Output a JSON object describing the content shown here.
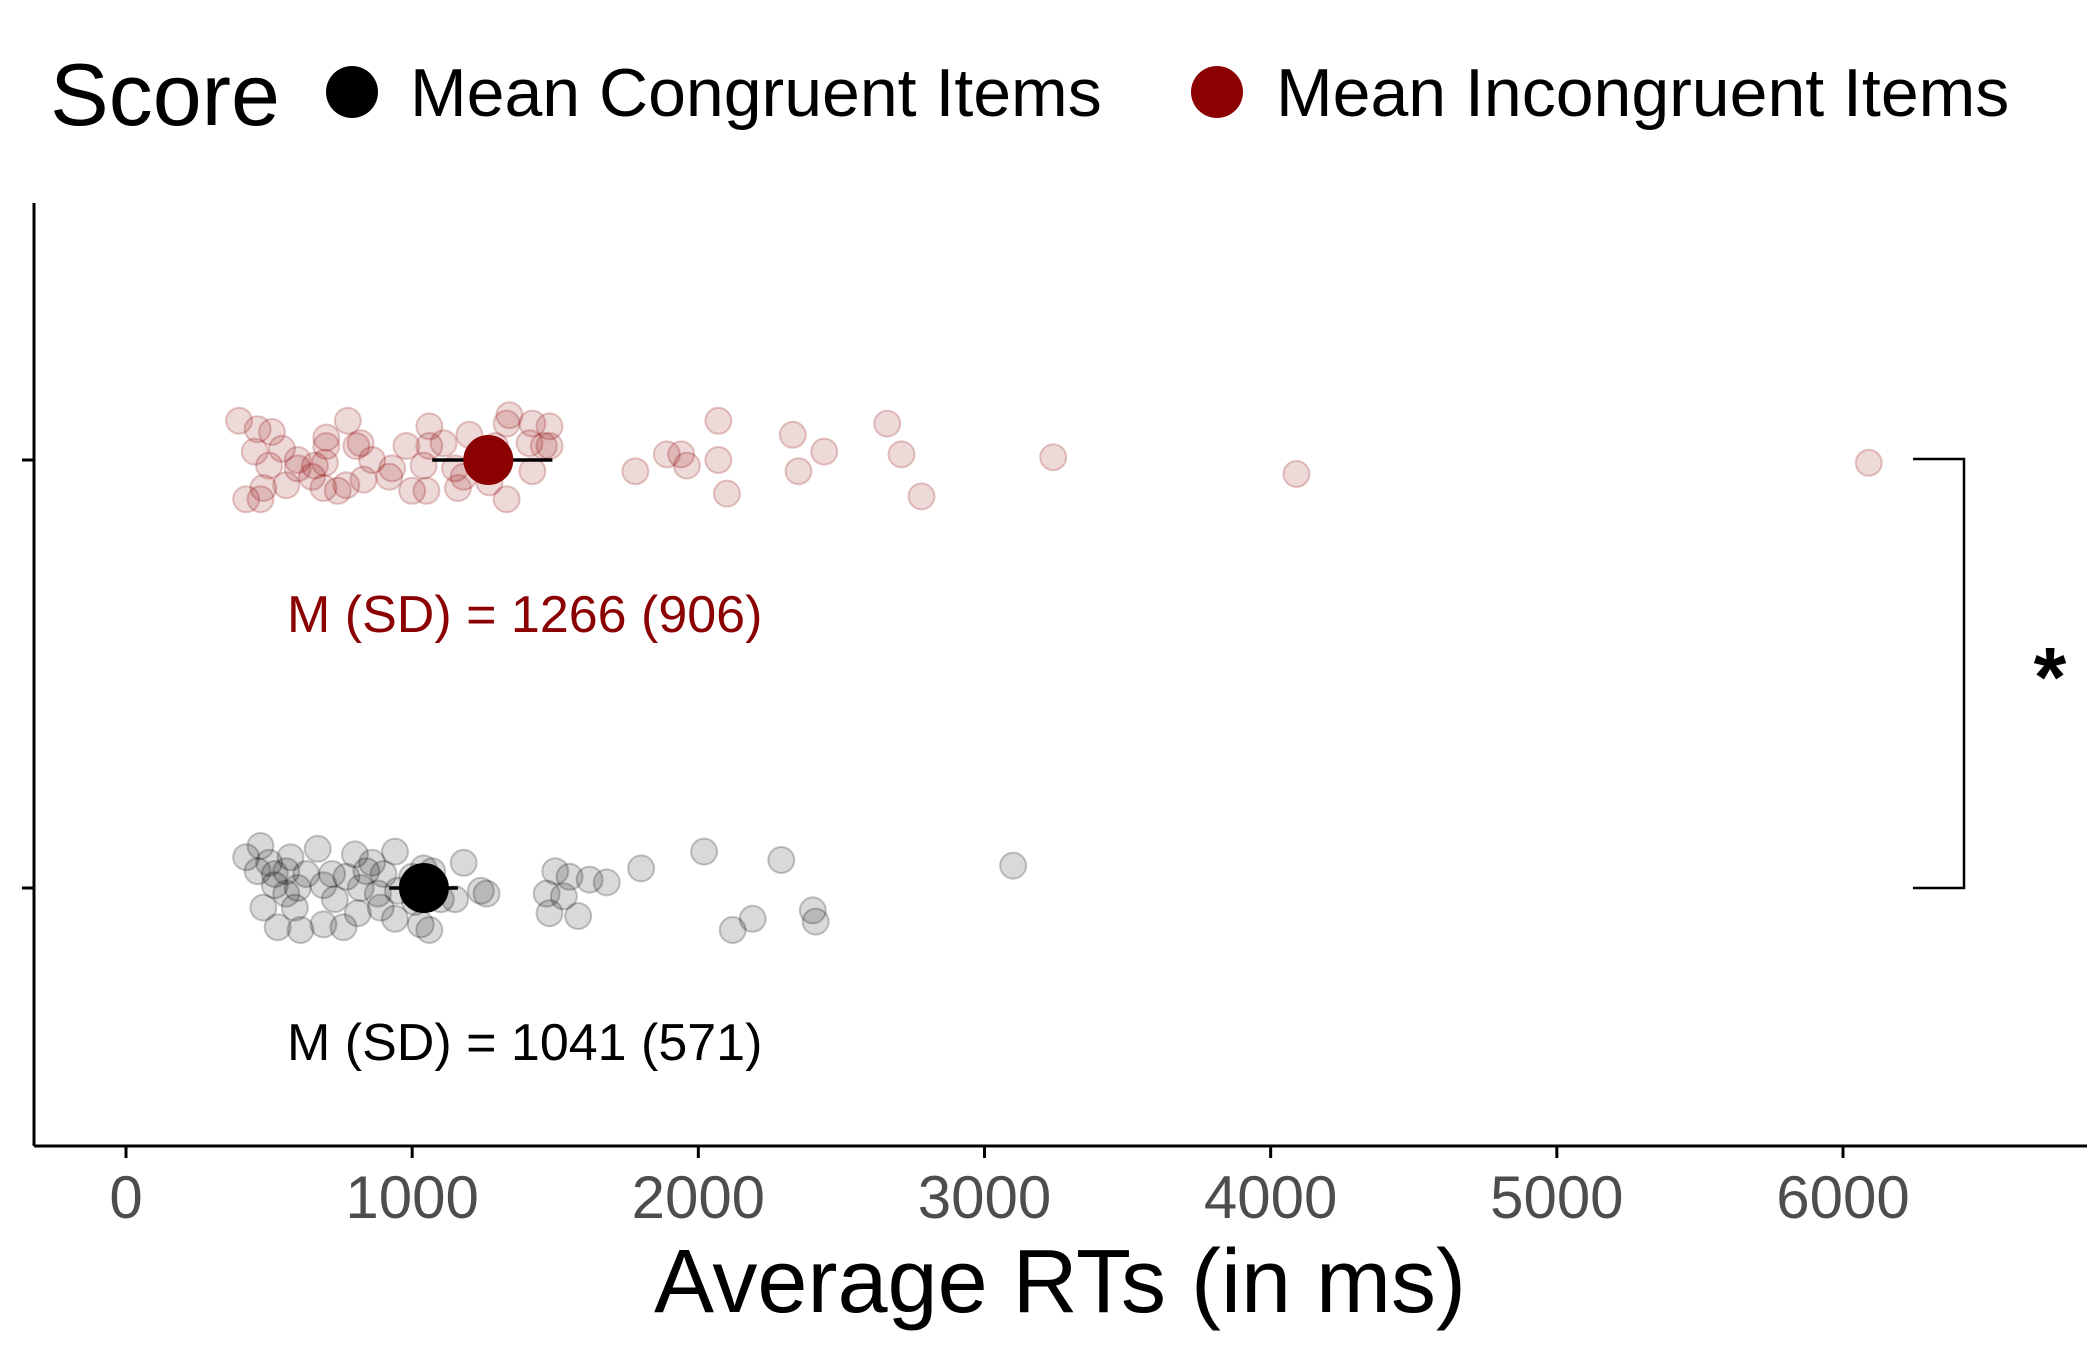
{
  "chart_data": {
    "type": "scatter",
    "orientation": "horizontal",
    "xlabel": "Average RTs (in ms)",
    "ylabel": "",
    "xlim": [
      -300,
      6700
    ],
    "xticks": [
      0,
      1000,
      2000,
      3000,
      4000,
      5000,
      6000
    ],
    "xtick_labels": [
      "0",
      "1000",
      "2000",
      "3000",
      "4000",
      "5000",
      "6000"
    ],
    "categories": [
      "Mean Incongruent Items",
      "Mean Congruent Items"
    ],
    "grid": false,
    "legend": {
      "position": "top",
      "title": "Score",
      "entries": [
        {
          "label": "Mean Congruent Items",
          "color": "#000000"
        },
        {
          "label": "Mean Incongruent Items",
          "color": "#8b0000"
        }
      ]
    },
    "series": [
      {
        "name": "Mean Incongruent Items",
        "color": "#8b0000",
        "mean": 1266,
        "sd": 906,
        "ci": [
          1070,
          1490
        ],
        "annotation": "M (SD) = 1266 (906)",
        "points": [
          [
            395,
            0.14
          ],
          [
            460,
            0.11
          ],
          [
            510,
            0.1
          ],
          [
            700,
            0.08
          ],
          [
            775,
            0.14
          ],
          [
            820,
            0.06
          ],
          [
            1060,
            0.12
          ],
          [
            1340,
            0.16
          ],
          [
            1330,
            0.13
          ],
          [
            1420,
            0.13
          ],
          [
            1480,
            0.12
          ],
          [
            2070,
            0.14
          ],
          [
            2330,
            0.09
          ],
          [
            2660,
            0.13
          ],
          [
            450,
            0.03
          ],
          [
            545,
            0.04
          ],
          [
            700,
            0.05
          ],
          [
            805,
            0.05
          ],
          [
            980,
            0.05
          ],
          [
            1060,
            0.05
          ],
          [
            1110,
            0.06
          ],
          [
            1200,
            0.09
          ],
          [
            1290,
            0.05
          ],
          [
            1410,
            0.06
          ],
          [
            1460,
            0.05
          ],
          [
            1480,
            0.05
          ],
          [
            1890,
            0.02
          ],
          [
            1940,
            0.02
          ],
          [
            2440,
            0.03
          ],
          [
            2710,
            0.02
          ],
          [
            3240,
            0.01
          ],
          [
            6090,
            -0.01
          ],
          [
            500,
            -0.02
          ],
          [
            600,
            -0.03
          ],
          [
            660,
            -0.02
          ],
          [
            695,
            -0.01
          ],
          [
            830,
            -0.07
          ],
          [
            920,
            -0.06
          ],
          [
            1040,
            -0.02
          ],
          [
            1150,
            -0.03
          ],
          [
            1280,
            -0.01
          ],
          [
            1420,
            -0.04
          ],
          [
            1780,
            -0.04
          ],
          [
            1960,
            -0.02
          ],
          [
            2070,
            0.0
          ],
          [
            2350,
            -0.04
          ],
          [
            4090,
            -0.05
          ],
          [
            480,
            -0.1
          ],
          [
            420,
            -0.14
          ],
          [
            470,
            -0.14
          ],
          [
            690,
            -0.1
          ],
          [
            740,
            -0.11
          ],
          [
            770,
            -0.09
          ],
          [
            1000,
            -0.11
          ],
          [
            1050,
            -0.11
          ],
          [
            1160,
            -0.1
          ],
          [
            1330,
            -0.14
          ],
          [
            2100,
            -0.12
          ],
          [
            2780,
            -0.13
          ],
          [
            1270,
            -0.08
          ],
          [
            600,
            0.0
          ],
          [
            860,
            0.0
          ],
          [
            930,
            -0.03
          ],
          [
            1180,
            -0.06
          ],
          [
            650,
            -0.06
          ],
          [
            560,
            -0.09
          ]
        ]
      },
      {
        "name": "Mean Congruent Items",
        "color": "#000000",
        "mean": 1041,
        "sd": 571,
        "ci": [
          920,
          1160
        ],
        "annotation": "M (SD) = 1041 (571)",
        "points": [
          [
            470,
            0.15
          ],
          [
            420,
            0.11
          ],
          [
            500,
            0.09
          ],
          [
            575,
            0.11
          ],
          [
            670,
            0.14
          ],
          [
            800,
            0.12
          ],
          [
            860,
            0.09
          ],
          [
            940,
            0.13
          ],
          [
            1180,
            0.09
          ],
          [
            1040,
            0.07
          ],
          [
            1070,
            0.06
          ],
          [
            1800,
            0.07
          ],
          [
            2020,
            0.13
          ],
          [
            2290,
            0.1
          ],
          [
            3100,
            0.08
          ],
          [
            460,
            0.06
          ],
          [
            520,
            0.05
          ],
          [
            560,
            0.06
          ],
          [
            630,
            0.05
          ],
          [
            720,
            0.05
          ],
          [
            770,
            0.04
          ],
          [
            840,
            0.06
          ],
          [
            900,
            0.05
          ],
          [
            1000,
            0.04
          ],
          [
            1500,
            0.06
          ],
          [
            1550,
            0.04
          ],
          [
            1620,
            0.03
          ],
          [
            1680,
            0.02
          ],
          [
            520,
            0.01
          ],
          [
            600,
            0.0
          ],
          [
            690,
            0.01
          ],
          [
            820,
            0.0
          ],
          [
            880,
            -0.02
          ],
          [
            950,
            -0.01
          ],
          [
            1100,
            -0.04
          ],
          [
            1260,
            -0.02
          ],
          [
            1470,
            -0.02
          ],
          [
            1530,
            -0.03
          ],
          [
            480,
            -0.07
          ],
          [
            590,
            -0.07
          ],
          [
            810,
            -0.09
          ],
          [
            890,
            -0.07
          ],
          [
            1010,
            -0.05
          ],
          [
            1150,
            -0.04
          ],
          [
            1480,
            -0.09
          ],
          [
            1580,
            -0.1
          ],
          [
            530,
            -0.14
          ],
          [
            610,
            -0.15
          ],
          [
            690,
            -0.13
          ],
          [
            760,
            -0.14
          ],
          [
            940,
            -0.11
          ],
          [
            1030,
            -0.13
          ],
          [
            1060,
            -0.15
          ],
          [
            2190,
            -0.11
          ],
          [
            2400,
            -0.08
          ],
          [
            2410,
            -0.12
          ],
          [
            2120,
            -0.15
          ],
          [
            1240,
            -0.01
          ],
          [
            730,
            -0.04
          ],
          [
            560,
            -0.02
          ]
        ]
      }
    ],
    "significance": {
      "from": "Mean Incongruent Items",
      "to": "Mean Congruent Items",
      "label": "*"
    }
  }
}
